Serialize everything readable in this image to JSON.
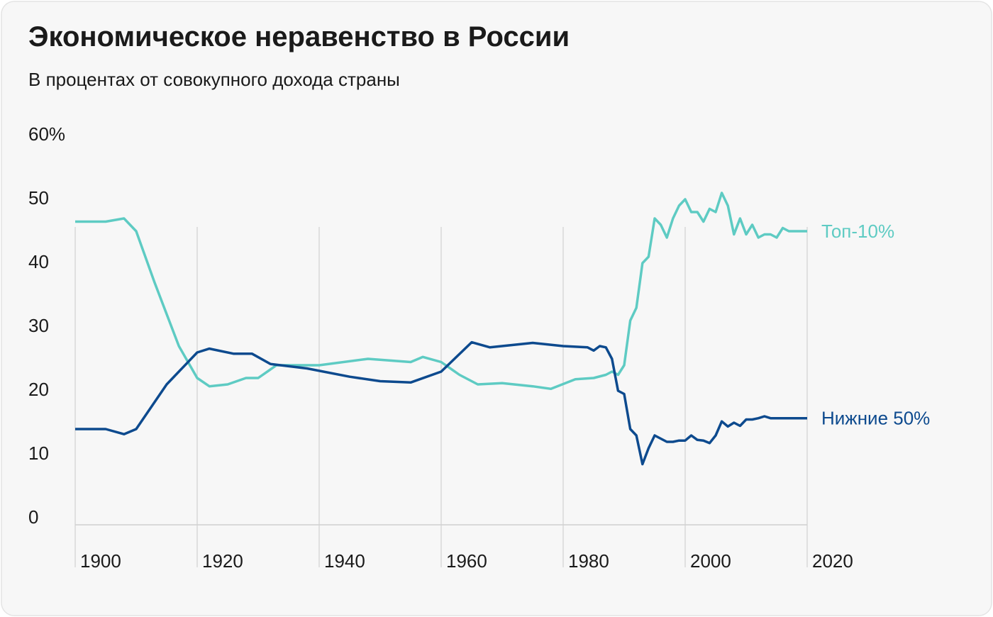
{
  "chart_data": {
    "type": "line",
    "title": "Экономическое неравенство в России",
    "subtitle": "В процентах от совокупного дохода страны",
    "xlim": [
      1900,
      2020
    ],
    "xticks": [
      1900,
      1920,
      1940,
      1960,
      1980,
      2000,
      2020
    ],
    "ylim": [
      0,
      60
    ],
    "yticks": [
      0,
      10,
      20,
      30,
      40,
      50,
      {
        "value": 60,
        "label": "60%"
      }
    ],
    "grid": true,
    "series": [
      {
        "name": "Топ-10%",
        "color": "#5ecbc3",
        "x": [
          1900,
          1905,
          1908,
          1910,
          1913,
          1917,
          1920,
          1922,
          1925,
          1928,
          1930,
          1933,
          1940,
          1948,
          1955,
          1957,
          1960,
          1963,
          1966,
          1970,
          1975,
          1978,
          1982,
          1985,
          1987,
          1988,
          1989,
          1990,
          1991,
          1992,
          1993,
          1994,
          1995,
          1996,
          1997,
          1998,
          1999,
          2000,
          2001,
          2002,
          2003,
          2004,
          2005,
          2006,
          2007,
          2008,
          2009,
          2010,
          2011,
          2012,
          2013,
          2014,
          2015,
          2016,
          2017,
          2018,
          2019,
          2020
        ],
        "values": [
          47.5,
          47.5,
          48,
          46,
          38,
          28,
          23,
          21.7,
          22,
          23,
          23,
          25,
          25,
          26,
          25.5,
          26.3,
          25.5,
          23.5,
          22,
          22.2,
          21.7,
          21.3,
          22.8,
          23,
          23.5,
          24,
          23.5,
          25,
          32,
          34,
          41,
          42,
          48,
          47,
          45,
          48,
          50,
          51,
          49,
          49,
          47.5,
          49.5,
          49,
          52,
          50,
          45.5,
          48,
          45.5,
          47,
          45,
          45.5,
          45.5,
          45,
          46.5,
          46,
          46,
          46,
          46
        ]
      },
      {
        "name": "Нижние 50%",
        "color": "#0d4a8e",
        "x": [
          1900,
          1905,
          1908,
          1910,
          1915,
          1920,
          1922,
          1926,
          1929,
          1932,
          1938,
          1945,
          1950,
          1955,
          1960,
          1965,
          1968,
          1975,
          1980,
          1984,
          1985,
          1986,
          1987,
          1988,
          1989,
          1990,
          1991,
          1992,
          1993,
          1994,
          1995,
          1996,
          1997,
          1998,
          1999,
          2000,
          2001,
          2002,
          2003,
          2004,
          2005,
          2006,
          2007,
          2008,
          2009,
          2010,
          2011,
          2012,
          2013,
          2014,
          2015,
          2016,
          2020
        ],
        "values": [
          15,
          15,
          14.2,
          15,
          22,
          27,
          27.6,
          26.8,
          26.8,
          25.2,
          24.5,
          23.2,
          22.5,
          22.3,
          24,
          28.6,
          27.8,
          28.5,
          28,
          27.8,
          27.3,
          28,
          27.8,
          26,
          21,
          20.5,
          15,
          14,
          9.5,
          12,
          14,
          13.5,
          13,
          13,
          13.2,
          13.2,
          14,
          13.3,
          13.2,
          12.8,
          14,
          16.2,
          15.4,
          16,
          15.5,
          16.5,
          16.5,
          16.7,
          17,
          16.7,
          16.7,
          16.7,
          16.7
        ]
      }
    ]
  }
}
